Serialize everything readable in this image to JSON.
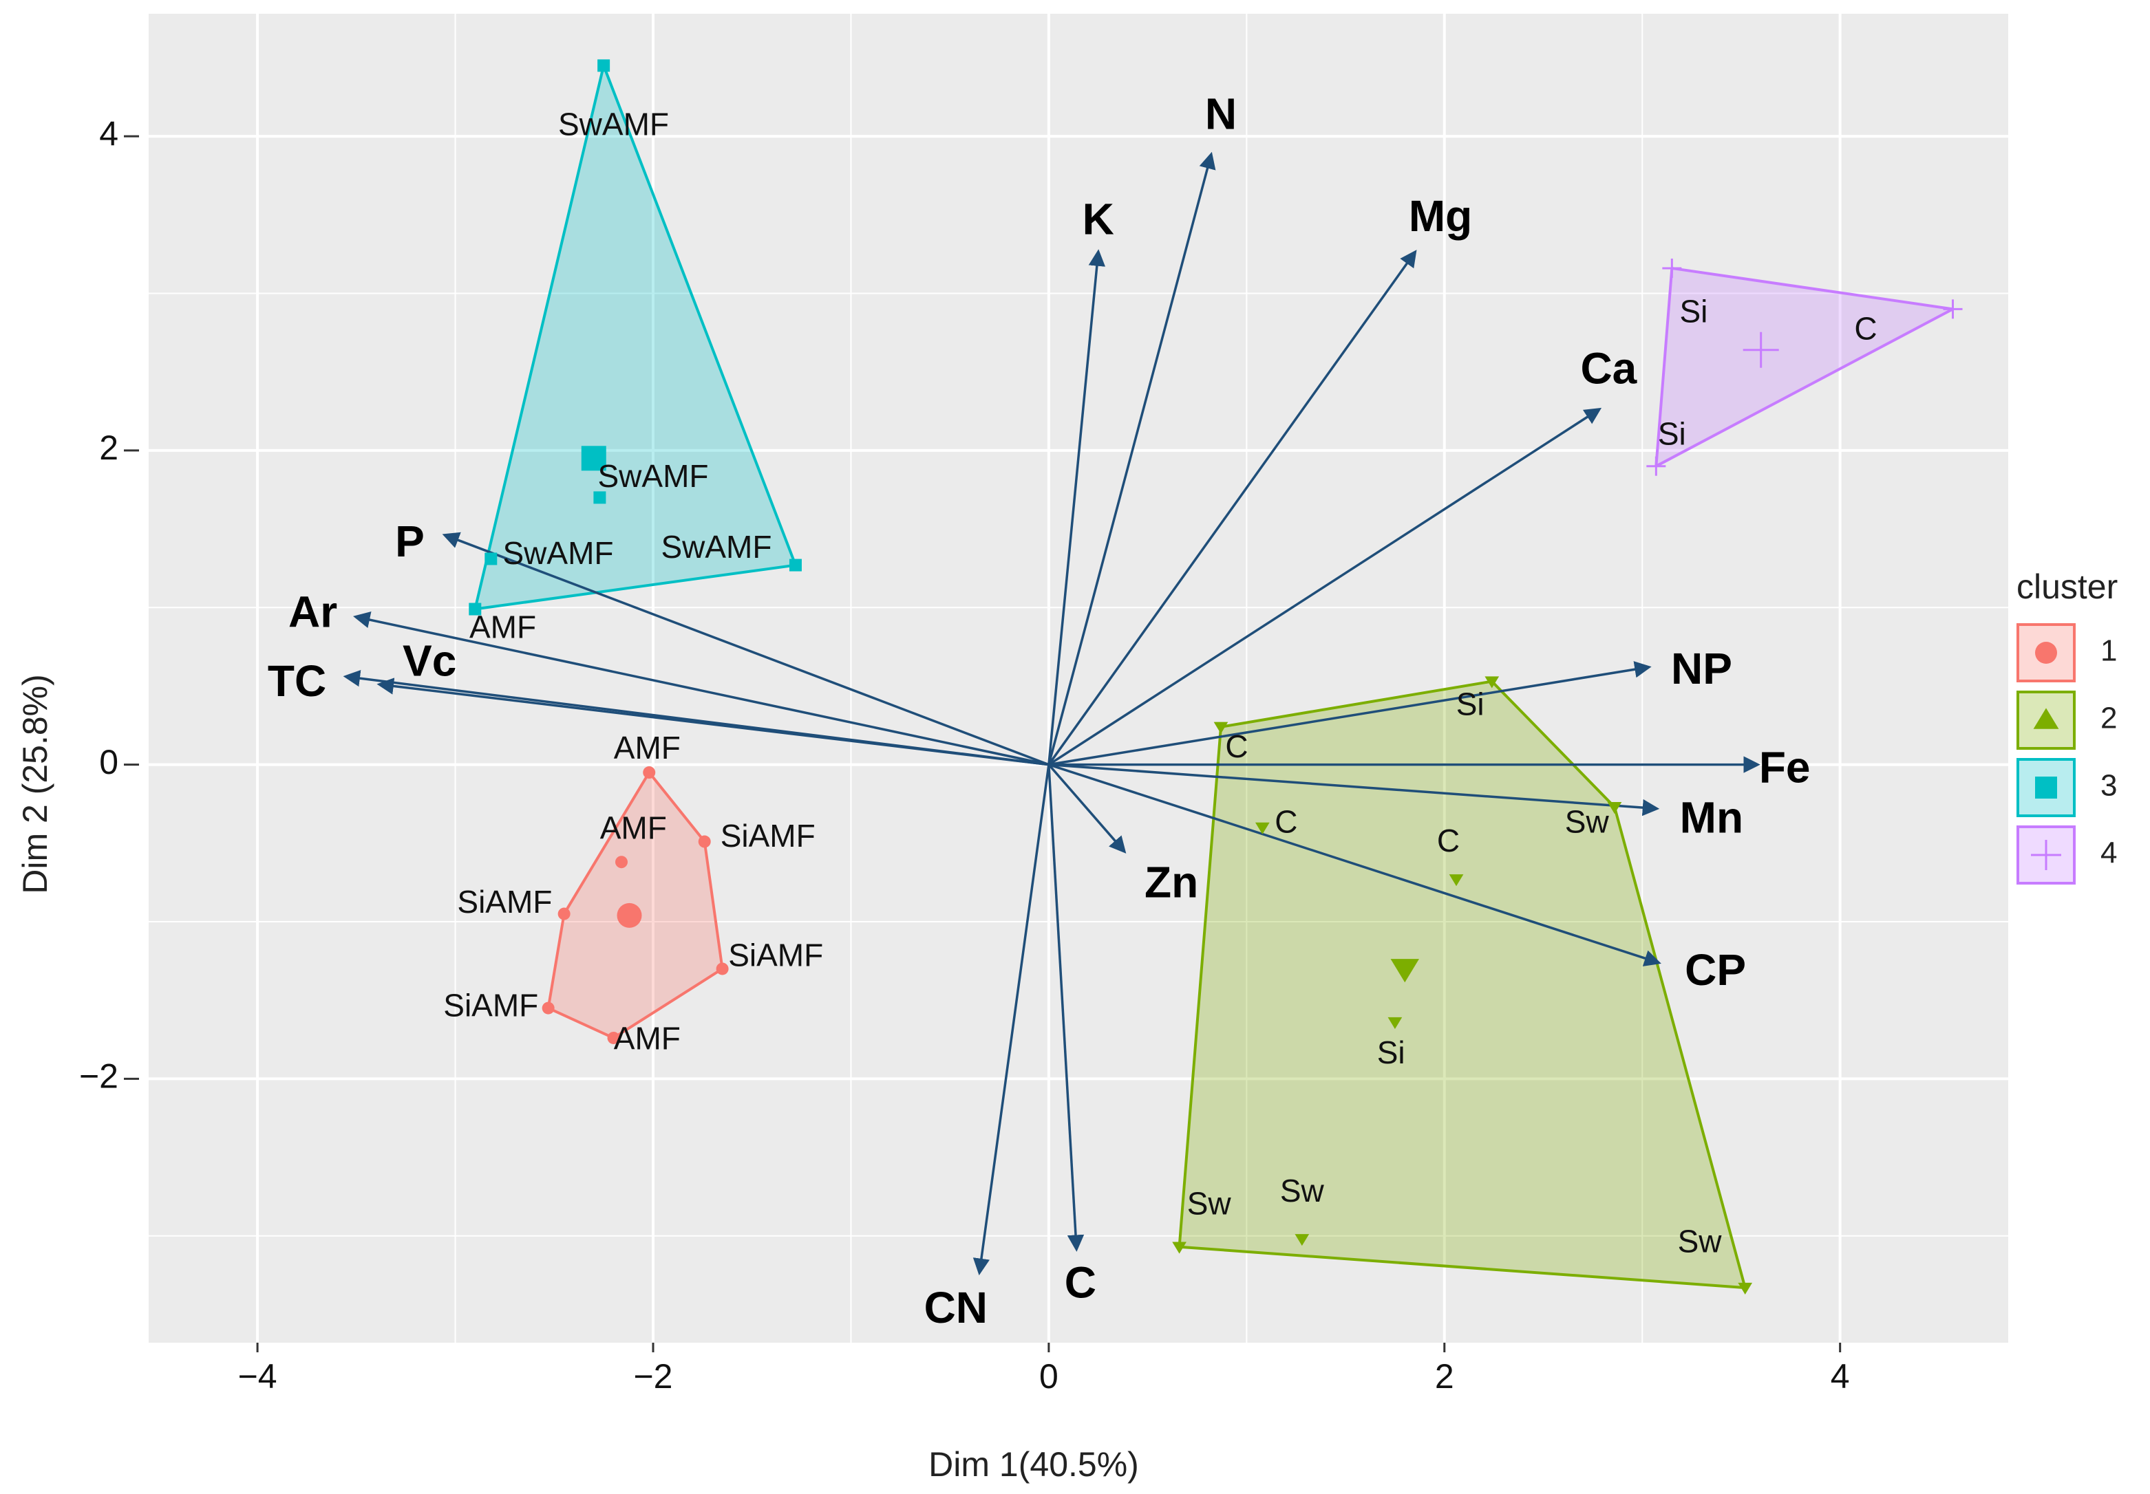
{
  "chart_data": {
    "type": "scatter",
    "subtype": "PCA biplot with cluster hulls",
    "xlabel": "Dim 1(40.5%)",
    "ylabel": "Dim 2 (25.8%)",
    "xlim": [
      -4.55,
      4.85
    ],
    "ylim": [
      -3.68,
      4.78
    ],
    "xticks": [
      -4,
      -2,
      0,
      2,
      4
    ],
    "yticks": [
      -2,
      0,
      2,
      4
    ],
    "xtick_labels": [
      "−4",
      "−2",
      "0",
      "2",
      "4"
    ],
    "ytick_labels": [
      "−2",
      "0",
      "2",
      "4"
    ],
    "grid": true,
    "legend": {
      "title": "cluster",
      "position": "right",
      "entries": [
        {
          "label": "1",
          "color": "#F8766D",
          "shape": "circle"
        },
        {
          "label": "2",
          "color": "#7CAE00",
          "shape": "triangle"
        },
        {
          "label": "3",
          "color": "#00BFC4",
          "shape": "square"
        },
        {
          "label": "4",
          "color": "#C77CFF",
          "shape": "cross"
        }
      ]
    },
    "arrow_color": "#1F4E79",
    "variables": [
      {
        "name": "N",
        "x": 0.82,
        "y": 3.88,
        "lx": 0.87,
        "ly": 4.12
      },
      {
        "name": "K",
        "x": 0.25,
        "y": 3.26,
        "lx": 0.25,
        "ly": 3.45
      },
      {
        "name": "Mg",
        "x": 1.85,
        "y": 3.26,
        "lx": 1.98,
        "ly": 3.47
      },
      {
        "name": "Ca",
        "x": 2.78,
        "y": 2.26,
        "lx": 2.83,
        "ly": 2.5
      },
      {
        "name": "P",
        "x": -3.05,
        "y": 1.46,
        "lx": -3.23,
        "ly": 1.4
      },
      {
        "name": "Ar",
        "x": -3.5,
        "y": 0.94,
        "lx": -3.72,
        "ly": 0.95
      },
      {
        "name": "TC",
        "x": -3.55,
        "y": 0.56,
        "lx": -3.8,
        "ly": 0.51
      },
      {
        "name": "Vc",
        "x": -3.38,
        "y": 0.51,
        "lx": -3.13,
        "ly": 0.64
      },
      {
        "name": "NP",
        "x": 3.03,
        "y": 0.62,
        "lx": 3.3,
        "ly": 0.59
      },
      {
        "name": "Fe",
        "x": 3.58,
        "y": 0.0,
        "lx": 3.72,
        "ly": -0.04
      },
      {
        "name": "Mn",
        "x": 3.07,
        "y": -0.28,
        "lx": 3.35,
        "ly": -0.36
      },
      {
        "name": "CP",
        "x": 3.08,
        "y": -1.26,
        "lx": 3.37,
        "ly": -1.33
      },
      {
        "name": "Zn",
        "x": 0.38,
        "y": -0.55,
        "lx": 0.62,
        "ly": -0.77
      },
      {
        "name": "CN",
        "x": -0.35,
        "y": -3.23,
        "lx": -0.47,
        "ly": -3.48
      },
      {
        "name": "C",
        "x": 0.14,
        "y": -3.08,
        "lx": 0.16,
        "ly": -3.32
      }
    ],
    "clusters": [
      {
        "name": "1",
        "color": "#F8766D",
        "shape": "circle",
        "hull": [
          [
            -2.02,
            -0.05
          ],
          [
            -1.74,
            -0.49
          ],
          [
            -1.65,
            -1.3
          ],
          [
            -2.2,
            -1.74
          ],
          [
            -2.53,
            -1.55
          ],
          [
            -2.45,
            -0.95
          ]
        ],
        "centroid": [
          -2.12,
          -0.96
        ],
        "points": [
          {
            "x": -2.02,
            "y": -0.05,
            "label": "AMF",
            "lx": -2.03,
            "ly": 0.09
          },
          {
            "x": -2.16,
            "y": -0.62,
            "label": "AMF",
            "lx": -2.1,
            "ly": -0.42
          },
          {
            "x": -1.74,
            "y": -0.49,
            "label": "SiAMF",
            "lx": -1.42,
            "ly": -0.47
          },
          {
            "x": -2.45,
            "y": -0.95,
            "label": "SiAMF",
            "lx": -2.75,
            "ly": -0.89
          },
          {
            "x": -1.65,
            "y": -1.3,
            "label": "SiAMF",
            "lx": -1.38,
            "ly": -1.23
          },
          {
            "x": -2.53,
            "y": -1.55,
            "label": "SiAMF",
            "lx": -2.82,
            "ly": -1.55
          },
          {
            "x": -2.2,
            "y": -1.74,
            "label": "AMF",
            "lx": -2.03,
            "ly": -1.76
          }
        ]
      },
      {
        "name": "2",
        "color": "#7CAE00",
        "shape": "triangle",
        "hull": [
          [
            0.87,
            0.24
          ],
          [
            2.24,
            0.53
          ],
          [
            2.86,
            -0.27
          ],
          [
            3.52,
            -3.33
          ],
          [
            0.66,
            -3.07
          ]
        ],
        "centroid": [
          1.8,
          -1.3
        ],
        "points": [
          {
            "x": 0.87,
            "y": 0.24,
            "label": "C",
            "lx": 0.95,
            "ly": 0.1
          },
          {
            "x": 2.24,
            "y": 0.53,
            "label": "Si",
            "lx": 2.13,
            "ly": 0.37
          },
          {
            "x": 1.08,
            "y": -0.4,
            "label": "C",
            "lx": 1.2,
            "ly": -0.38
          },
          {
            "x": 2.06,
            "y": -0.73,
            "label": "C",
            "lx": 2.02,
            "ly": -0.5
          },
          {
            "x": 2.86,
            "y": -0.27,
            "label": "Sw",
            "lx": 2.72,
            "ly": -0.38
          },
          {
            "x": 1.75,
            "y": -1.64,
            "label": "Si",
            "lx": 1.73,
            "ly": -1.85
          },
          {
            "x": 0.66,
            "y": -3.07,
            "label": "Sw",
            "lx": 0.81,
            "ly": -2.81
          },
          {
            "x": 1.28,
            "y": -3.02,
            "label": "Sw",
            "lx": 1.28,
            "ly": -2.73
          },
          {
            "x": 3.52,
            "y": -3.33,
            "label": "Sw",
            "lx": 3.29,
            "ly": -3.05
          }
        ]
      },
      {
        "name": "3",
        "color": "#00BFC4",
        "shape": "square",
        "hull": [
          [
            -2.25,
            4.45
          ],
          [
            -1.28,
            1.27
          ],
          [
            -2.9,
            0.99
          ]
        ],
        "centroid": [
          -2.3,
          1.95
        ],
        "points": [
          {
            "x": -2.25,
            "y": 4.45,
            "label": "SwAMF",
            "lx": -2.2,
            "ly": 4.06
          },
          {
            "x": -2.27,
            "y": 1.7,
            "label": "SwAMF",
            "lx": -2.0,
            "ly": 1.82
          },
          {
            "x": -1.28,
            "y": 1.27,
            "label": "SwAMF",
            "lx": -1.68,
            "ly": 1.37
          },
          {
            "x": -2.82,
            "y": 1.31,
            "label": "SwAMF",
            "lx": -2.48,
            "ly": 1.33
          },
          {
            "x": -2.9,
            "y": 0.99,
            "label": "AMF",
            "lx": -2.76,
            "ly": 0.86
          }
        ]
      },
      {
        "name": "4",
        "color": "#C77CFF",
        "shape": "cross",
        "hull": [
          [
            3.15,
            3.16
          ],
          [
            4.57,
            2.9
          ],
          [
            3.07,
            1.9
          ]
        ],
        "centroid": [
          3.6,
          2.64
        ],
        "points": [
          {
            "x": 3.15,
            "y": 3.16,
            "label": "Si",
            "lx": 3.26,
            "ly": 2.87
          },
          {
            "x": 4.57,
            "y": 2.9,
            "label": "C",
            "lx": 4.13,
            "ly": 2.76
          },
          {
            "x": 3.07,
            "y": 1.9,
            "label": "Si",
            "lx": 3.15,
            "ly": 2.09
          }
        ]
      }
    ]
  }
}
